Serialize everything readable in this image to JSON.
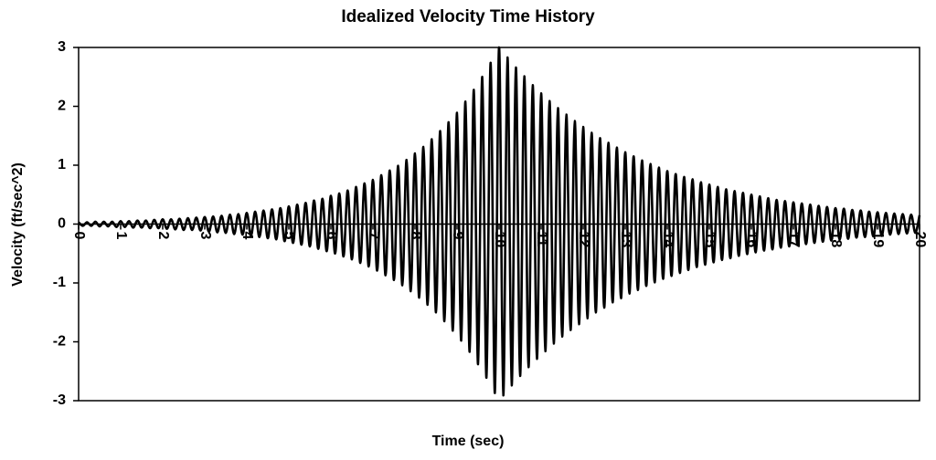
{
  "chart_data": {
    "type": "line",
    "title": "Idealized Velocity Time History",
    "x_label": "Time (sec)",
    "y_label": "Velocity (ft/sec^2)",
    "xlim": [
      0,
      20
    ],
    "ylim": [
      -3,
      3
    ],
    "xticks": [
      0,
      1,
      2,
      3,
      4,
      5,
      6,
      7,
      8,
      9,
      10,
      11,
      12,
      13,
      14,
      15,
      16,
      17,
      18,
      19,
      20
    ],
    "yticks": [
      -3,
      -2,
      -1,
      0,
      1,
      2,
      3
    ],
    "grid": false,
    "x": [
      0,
      0.1,
      0.2,
      0.3,
      0.4,
      0.5,
      0.6,
      0.7,
      0.8,
      0.9,
      1,
      1.1,
      1.2,
      1.3,
      1.4,
      1.5,
      1.6,
      1.7,
      1.8,
      1.9,
      2,
      2.1,
      2.2,
      2.3,
      2.4,
      2.5,
      2.6,
      2.7,
      2.8,
      2.9,
      3,
      3.1,
      3.2,
      3.3,
      3.4,
      3.5,
      3.6,
      3.7,
      3.8,
      3.9,
      4,
      4.1,
      4.2,
      4.3,
      4.4,
      4.5,
      4.6,
      4.7,
      4.8,
      4.9,
      5,
      5.1,
      5.2,
      5.3,
      5.4,
      5.5,
      5.6,
      5.7,
      5.8,
      5.9,
      6,
      6.1,
      6.2,
      6.3,
      6.4,
      6.5,
      6.6,
      6.7,
      6.8,
      6.9,
      7,
      7.1,
      7.2,
      7.3,
      7.4,
      7.5,
      7.6,
      7.7,
      7.8,
      7.9,
      8,
      8.1,
      8.2,
      8.3,
      8.4,
      8.5,
      8.6,
      8.7,
      8.8,
      8.9,
      9,
      9.1,
      9.2,
      9.3,
      9.4,
      9.5,
      9.6,
      9.7,
      9.8,
      9.9,
      10,
      10.1,
      10.2,
      10.3,
      10.4,
      10.5,
      10.6,
      10.7,
      10.8,
      10.9,
      11,
      11.1,
      11.2,
      11.3,
      11.4,
      11.5,
      11.6,
      11.7,
      11.8,
      11.9,
      12,
      12.1,
      12.2,
      12.3,
      12.4,
      12.5,
      12.6,
      12.7,
      12.8,
      12.9,
      13,
      13.1,
      13.2,
      13.3,
      13.4,
      13.5,
      13.6,
      13.7,
      13.8,
      13.9,
      14,
      14.1,
      14.2,
      14.3,
      14.4,
      14.5,
      14.6,
      14.7,
      14.8,
      14.9,
      15,
      15.1,
      15.2,
      15.3,
      15.4,
      15.5,
      15.6,
      15.7,
      15.8,
      15.9,
      16,
      16.1,
      16.2,
      16.3,
      16.4,
      16.5,
      16.6,
      16.7,
      16.8,
      16.9,
      17,
      17.1,
      17.2,
      17.3,
      17.4,
      17.5,
      17.6,
      17.7,
      17.8,
      17.9,
      18,
      18.1,
      18.2,
      18.3,
      18.4,
      18.5,
      18.6,
      18.7,
      18.8,
      18.9,
      19,
      19.1,
      19.2,
      19.3,
      19.4,
      19.5,
      19.6,
      19.7,
      19.8,
      19.9,
      20
    ],
    "series": [
      {
        "color": "#000000",
        "values": [
          0.03,
          -0.03,
          0.03,
          -0.03,
          0.04,
          -0.04,
          0.04,
          -0.04,
          0.04,
          -0.05,
          0.05,
          -0.05,
          0.05,
          -0.06,
          0.06,
          -0.06,
          0.06,
          -0.07,
          0.07,
          -0.07,
          0.08,
          -0.08,
          0.08,
          -0.09,
          0.09,
          -0.1,
          0.1,
          -0.1,
          0.11,
          -0.11,
          0.12,
          -0.13,
          0.13,
          -0.14,
          0.14,
          -0.15,
          0.16,
          -0.17,
          0.17,
          -0.18,
          0.19,
          -0.2,
          0.21,
          -0.22,
          0.23,
          -0.24,
          0.25,
          -0.26,
          0.27,
          -0.29,
          0.3,
          -0.32,
          0.33,
          -0.35,
          0.36,
          -0.38,
          0.4,
          -0.42,
          0.43,
          -0.46,
          0.48,
          -0.5,
          0.52,
          -0.55,
          0.57,
          -0.6,
          0.63,
          -0.66,
          0.69,
          -0.72,
          0.75,
          -0.79,
          0.83,
          -0.87,
          0.91,
          -0.95,
          0.99,
          -1.04,
          1.09,
          -1.14,
          1.2,
          -1.25,
          1.31,
          -1.37,
          1.44,
          -1.5,
          1.58,
          -1.65,
          1.73,
          -1.81,
          1.89,
          -1.98,
          2.08,
          -2.17,
          2.28,
          -2.38,
          2.5,
          -2.61,
          2.74,
          -2.87,
          3,
          -2.91,
          2.83,
          -2.74,
          2.66,
          -2.58,
          2.51,
          -2.43,
          2.36,
          -2.29,
          2.22,
          -2.16,
          2.09,
          -2.03,
          1.97,
          -1.91,
          1.86,
          -1.8,
          1.75,
          -1.7,
          1.65,
          -1.6,
          1.55,
          -1.5,
          1.46,
          -1.42,
          1.38,
          -1.33,
          1.3,
          -1.26,
          1.22,
          -1.18,
          1.15,
          -1.12,
          1.08,
          -1.05,
          1.02,
          -0.99,
          0.96,
          -0.93,
          0.9,
          -0.88,
          0.85,
          -0.83,
          0.8,
          -0.78,
          0.76,
          -0.73,
          0.71,
          -0.69,
          0.67,
          -0.65,
          0.63,
          -0.61,
          0.59,
          -0.58,
          0.56,
          -0.54,
          0.53,
          -0.51,
          0.5,
          -0.48,
          0.47,
          -0.45,
          0.44,
          -0.43,
          0.41,
          -0.4,
          0.39,
          -0.38,
          0.37,
          -0.36,
          0.35,
          -0.34,
          0.33,
          -0.32,
          0.31,
          -0.3,
          0.29,
          -0.28,
          0.27,
          -0.26,
          0.26,
          -0.25,
          0.24,
          -0.23,
          0.23,
          -0.22,
          0.21,
          -0.21,
          0.2,
          -0.2,
          0.19,
          -0.18,
          0.18,
          -0.17,
          0.17,
          -0.16,
          0.16,
          -0.15,
          0.15
        ]
      }
    ]
  }
}
